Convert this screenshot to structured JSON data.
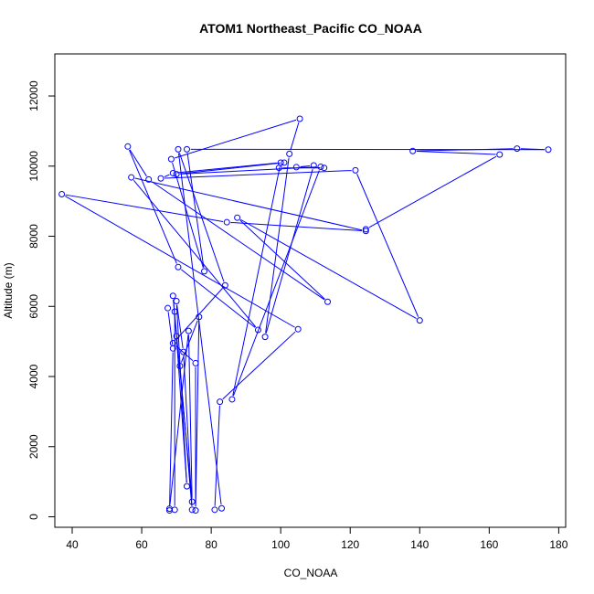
{
  "chart_data": {
    "type": "line",
    "title": "ATOM1 Northeast_Pacific CO_NOAA",
    "xlabel": "CO_NOAA",
    "ylabel": "Altitude (m)",
    "xlim": [
      35,
      182
    ],
    "ylim": [
      -300,
      13200
    ],
    "xticks": [
      40,
      60,
      80,
      100,
      120,
      140,
      160,
      180
    ],
    "yticks": [
      0,
      2000,
      4000,
      6000,
      8000,
      10000,
      12000
    ],
    "grid": false,
    "marker": "open-circle",
    "series": [
      {
        "color": "#0000ff",
        "points": [
          [
            68.0,
            180
          ],
          [
            69.0,
            4800
          ],
          [
            67.5,
            5950
          ],
          [
            69.5,
            5850
          ],
          [
            69.5,
            200
          ],
          [
            68.0,
            230
          ],
          [
            73.5,
            5300
          ],
          [
            74.5,
            430
          ],
          [
            69.0,
            6300
          ],
          [
            70.0,
            5150
          ],
          [
            73.0,
            870
          ],
          [
            70.0,
            6150
          ],
          [
            72.0,
            4700
          ],
          [
            74.5,
            200
          ],
          [
            71.0,
            4300
          ],
          [
            76.5,
            5700
          ],
          [
            75.5,
            180
          ],
          [
            75.5,
            4380
          ],
          [
            69.0,
            4950
          ],
          [
            84.0,
            6600
          ],
          [
            70.5,
            10480
          ],
          [
            83.0,
            240
          ],
          [
            81.0,
            200
          ],
          [
            82.5,
            3280
          ],
          [
            105.0,
            5350
          ],
          [
            37.0,
            9200
          ],
          [
            84.5,
            8400
          ],
          [
            124.5,
            8150
          ],
          [
            57.0,
            9680
          ],
          [
            93.5,
            5330
          ],
          [
            70.5,
            7120
          ],
          [
            56.0,
            10560
          ],
          [
            62.0,
            9620
          ],
          [
            113.5,
            6130
          ],
          [
            87.5,
            8530
          ],
          [
            140.0,
            5600
          ],
          [
            121.5,
            9880
          ],
          [
            65.5,
            9650
          ],
          [
            69.0,
            9800
          ],
          [
            100.0,
            10100
          ],
          [
            86.0,
            3350
          ],
          [
            111.5,
            9980
          ],
          [
            70.0,
            9770
          ],
          [
            101.0,
            10100
          ],
          [
            99.5,
            9950
          ],
          [
            112.5,
            9950
          ],
          [
            104.5,
            9970
          ],
          [
            109.5,
            10020
          ],
          [
            95.5,
            5130
          ],
          [
            102.5,
            10350
          ],
          [
            105.5,
            11350
          ],
          [
            68.5,
            10200
          ],
          [
            78.0,
            7000
          ],
          [
            73.0,
            10480
          ],
          [
            177.0,
            10470
          ],
          [
            168.0,
            10500
          ],
          [
            138.0,
            10430
          ],
          [
            163.0,
            10330
          ],
          [
            124.5,
            8200
          ]
        ]
      }
    ]
  }
}
